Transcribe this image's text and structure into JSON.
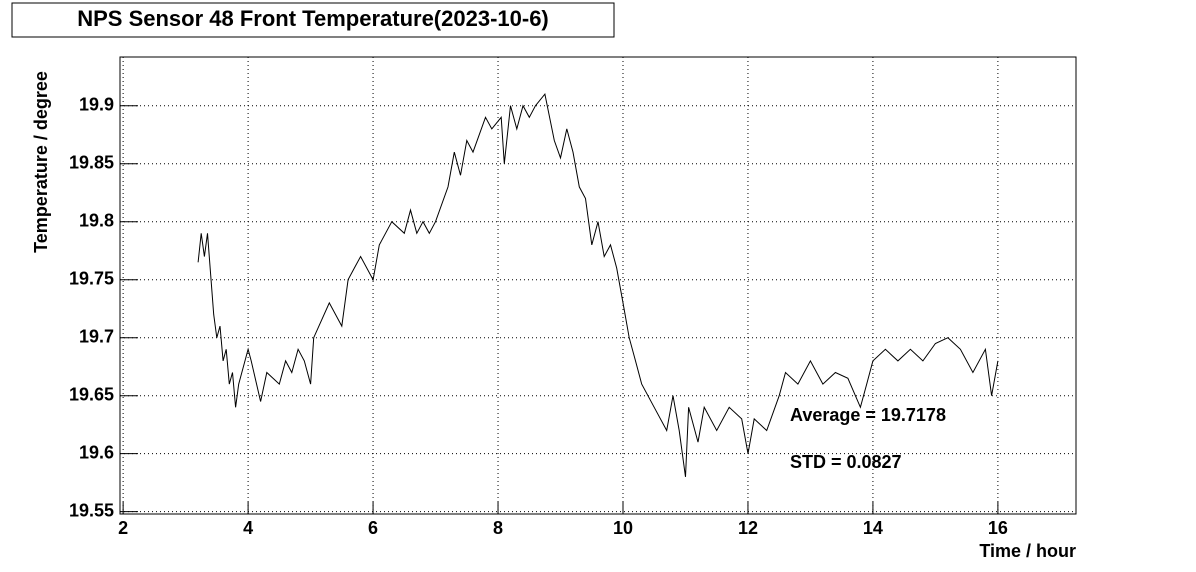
{
  "chart_data": {
    "type": "line",
    "title": "NPS Sensor 48 Front Temperature(2023-10-6)",
    "xlabel": "Time / hour",
    "ylabel": "Temperature / degree",
    "annotations": [
      "Average = 19.7178",
      "STD = 0.0827"
    ],
    "xlim": [
      1.95,
      17.25
    ],
    "ylim": [
      19.548,
      19.942
    ],
    "xticks": [
      2,
      4,
      6,
      8,
      10,
      12,
      14,
      16
    ],
    "yticks": [
      19.55,
      19.6,
      19.65,
      19.7,
      19.75,
      19.8,
      19.85,
      19.9
    ],
    "grid": true,
    "series": [
      {
        "color": "#000000",
        "x": [
          3.2,
          3.25,
          3.3,
          3.35,
          3.45,
          3.5,
          3.55,
          3.6,
          3.65,
          3.7,
          3.75,
          3.8,
          3.85,
          4.0,
          4.05,
          4.2,
          4.3,
          4.5,
          4.6,
          4.7,
          4.8,
          4.9,
          5.0,
          5.05,
          5.3,
          5.5,
          5.6,
          5.7,
          5.8,
          6.0,
          6.1,
          6.3,
          6.5,
          6.6,
          6.7,
          6.8,
          6.9,
          7.0,
          7.2,
          7.3,
          7.4,
          7.5,
          7.6,
          7.8,
          7.9,
          8.05,
          8.1,
          8.2,
          8.3,
          8.4,
          8.5,
          8.6,
          8.75,
          8.9,
          9.0,
          9.1,
          9.2,
          9.3,
          9.4,
          9.5,
          9.6,
          9.7,
          9.8,
          9.9,
          10.0,
          10.1,
          10.2,
          10.3,
          10.5,
          10.7,
          10.8,
          10.9,
          11.0,
          11.05,
          11.2,
          11.3,
          11.5,
          11.7,
          11.9,
          12.0,
          12.1,
          12.3,
          12.5,
          12.6,
          12.8,
          13.0,
          13.2,
          13.4,
          13.6,
          13.8,
          13.9,
          14.0,
          14.2,
          14.4,
          14.6,
          14.8,
          15.0,
          15.2,
          15.4,
          15.6,
          15.8,
          15.9,
          16.0
        ],
        "values": [
          19.765,
          19.79,
          19.77,
          19.79,
          19.72,
          19.7,
          19.71,
          19.68,
          19.69,
          19.66,
          19.67,
          19.64,
          19.66,
          19.69,
          19.68,
          19.645,
          19.67,
          19.66,
          19.68,
          19.67,
          19.69,
          19.68,
          19.66,
          19.7,
          19.73,
          19.71,
          19.75,
          19.76,
          19.77,
          19.75,
          19.78,
          19.8,
          19.79,
          19.81,
          19.79,
          19.8,
          19.79,
          19.8,
          19.83,
          19.86,
          19.84,
          19.87,
          19.86,
          19.89,
          19.88,
          19.89,
          19.85,
          19.9,
          19.88,
          19.9,
          19.89,
          19.9,
          19.91,
          19.87,
          19.855,
          19.88,
          19.86,
          19.83,
          19.82,
          19.78,
          19.8,
          19.77,
          19.78,
          19.76,
          19.73,
          19.7,
          19.68,
          19.66,
          19.64,
          19.62,
          19.65,
          19.62,
          19.58,
          19.64,
          19.61,
          19.64,
          19.62,
          19.64,
          19.63,
          19.6,
          19.63,
          19.62,
          19.65,
          19.67,
          19.66,
          19.68,
          19.66,
          19.67,
          19.665,
          19.64,
          19.66,
          19.68,
          19.69,
          19.68,
          19.69,
          19.68,
          19.695,
          19.7,
          19.69,
          19.67,
          19.69,
          19.65,
          19.68
        ]
      }
    ]
  }
}
